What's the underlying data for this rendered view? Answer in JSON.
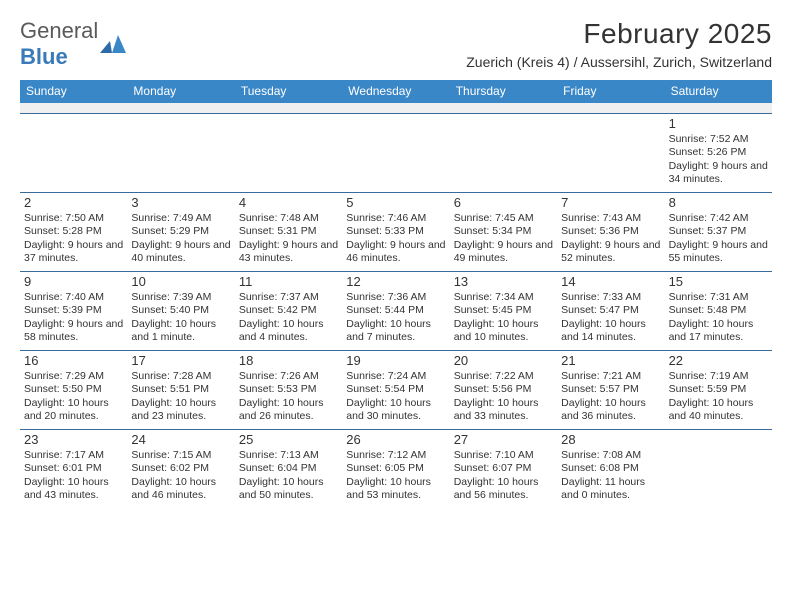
{
  "logo": {
    "text_1": "General",
    "text_2": "Blue"
  },
  "title": "February 2025",
  "location": "Zuerich (Kreis 4) / Aussersihl, Zurich, Switzerland",
  "colors": {
    "header_bg": "#3a87c8",
    "header_text": "#ffffff",
    "rule": "#3a6a9a",
    "spacer": "#f0f0f0",
    "logo_gray": "#5a5a5a",
    "logo_blue": "#3a7ab8"
  },
  "day_names": [
    "Sunday",
    "Monday",
    "Tuesday",
    "Wednesday",
    "Thursday",
    "Friday",
    "Saturday"
  ],
  "weeks": [
    [
      null,
      null,
      null,
      null,
      null,
      null,
      {
        "n": "1",
        "sunrise": "7:52 AM",
        "sunset": "5:26 PM",
        "daylight": "Daylight: 9 hours and 34 minutes."
      }
    ],
    [
      {
        "n": "2",
        "sunrise": "7:50 AM",
        "sunset": "5:28 PM",
        "daylight": "Daylight: 9 hours and 37 minutes."
      },
      {
        "n": "3",
        "sunrise": "7:49 AM",
        "sunset": "5:29 PM",
        "daylight": "Daylight: 9 hours and 40 minutes."
      },
      {
        "n": "4",
        "sunrise": "7:48 AM",
        "sunset": "5:31 PM",
        "daylight": "Daylight: 9 hours and 43 minutes."
      },
      {
        "n": "5",
        "sunrise": "7:46 AM",
        "sunset": "5:33 PM",
        "daylight": "Daylight: 9 hours and 46 minutes."
      },
      {
        "n": "6",
        "sunrise": "7:45 AM",
        "sunset": "5:34 PM",
        "daylight": "Daylight: 9 hours and 49 minutes."
      },
      {
        "n": "7",
        "sunrise": "7:43 AM",
        "sunset": "5:36 PM",
        "daylight": "Daylight: 9 hours and 52 minutes."
      },
      {
        "n": "8",
        "sunrise": "7:42 AM",
        "sunset": "5:37 PM",
        "daylight": "Daylight: 9 hours and 55 minutes."
      }
    ],
    [
      {
        "n": "9",
        "sunrise": "7:40 AM",
        "sunset": "5:39 PM",
        "daylight": "Daylight: 9 hours and 58 minutes."
      },
      {
        "n": "10",
        "sunrise": "7:39 AM",
        "sunset": "5:40 PM",
        "daylight": "Daylight: 10 hours and 1 minute."
      },
      {
        "n": "11",
        "sunrise": "7:37 AM",
        "sunset": "5:42 PM",
        "daylight": "Daylight: 10 hours and 4 minutes."
      },
      {
        "n": "12",
        "sunrise": "7:36 AM",
        "sunset": "5:44 PM",
        "daylight": "Daylight: 10 hours and 7 minutes."
      },
      {
        "n": "13",
        "sunrise": "7:34 AM",
        "sunset": "5:45 PM",
        "daylight": "Daylight: 10 hours and 10 minutes."
      },
      {
        "n": "14",
        "sunrise": "7:33 AM",
        "sunset": "5:47 PM",
        "daylight": "Daylight: 10 hours and 14 minutes."
      },
      {
        "n": "15",
        "sunrise": "7:31 AM",
        "sunset": "5:48 PM",
        "daylight": "Daylight: 10 hours and 17 minutes."
      }
    ],
    [
      {
        "n": "16",
        "sunrise": "7:29 AM",
        "sunset": "5:50 PM",
        "daylight": "Daylight: 10 hours and 20 minutes."
      },
      {
        "n": "17",
        "sunrise": "7:28 AM",
        "sunset": "5:51 PM",
        "daylight": "Daylight: 10 hours and 23 minutes."
      },
      {
        "n": "18",
        "sunrise": "7:26 AM",
        "sunset": "5:53 PM",
        "daylight": "Daylight: 10 hours and 26 minutes."
      },
      {
        "n": "19",
        "sunrise": "7:24 AM",
        "sunset": "5:54 PM",
        "daylight": "Daylight: 10 hours and 30 minutes."
      },
      {
        "n": "20",
        "sunrise": "7:22 AM",
        "sunset": "5:56 PM",
        "daylight": "Daylight: 10 hours and 33 minutes."
      },
      {
        "n": "21",
        "sunrise": "7:21 AM",
        "sunset": "5:57 PM",
        "daylight": "Daylight: 10 hours and 36 minutes."
      },
      {
        "n": "22",
        "sunrise": "7:19 AM",
        "sunset": "5:59 PM",
        "daylight": "Daylight: 10 hours and 40 minutes."
      }
    ],
    [
      {
        "n": "23",
        "sunrise": "7:17 AM",
        "sunset": "6:01 PM",
        "daylight": "Daylight: 10 hours and 43 minutes."
      },
      {
        "n": "24",
        "sunrise": "7:15 AM",
        "sunset": "6:02 PM",
        "daylight": "Daylight: 10 hours and 46 minutes."
      },
      {
        "n": "25",
        "sunrise": "7:13 AM",
        "sunset": "6:04 PM",
        "daylight": "Daylight: 10 hours and 50 minutes."
      },
      {
        "n": "26",
        "sunrise": "7:12 AM",
        "sunset": "6:05 PM",
        "daylight": "Daylight: 10 hours and 53 minutes."
      },
      {
        "n": "27",
        "sunrise": "7:10 AM",
        "sunset": "6:07 PM",
        "daylight": "Daylight: 10 hours and 56 minutes."
      },
      {
        "n": "28",
        "sunrise": "7:08 AM",
        "sunset": "6:08 PM",
        "daylight": "Daylight: 11 hours and 0 minutes."
      },
      null
    ]
  ],
  "labels": {
    "sunrise_prefix": "Sunrise: ",
    "sunset_prefix": "Sunset: "
  }
}
